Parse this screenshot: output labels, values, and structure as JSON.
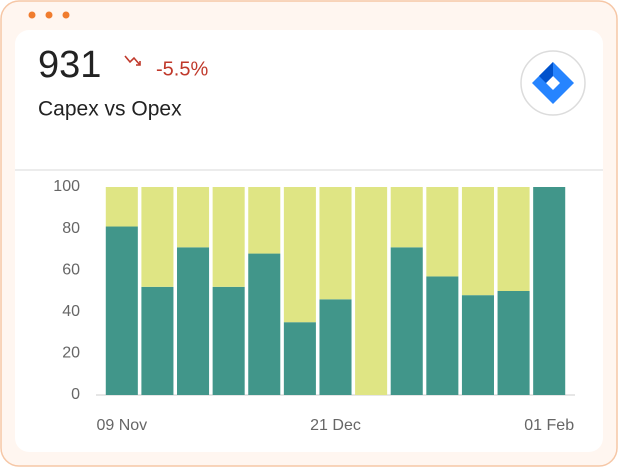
{
  "header": {
    "value": 931,
    "change": "-5.5%",
    "title": "Capex vs Opex"
  },
  "chart_data": {
    "type": "stacked_bar",
    "categories": [
      "09 Nov",
      null,
      null,
      null,
      null,
      null,
      "21 Dec",
      null,
      null,
      null,
      null,
      null,
      "01 Feb"
    ],
    "series": [
      {
        "color": "#41968a",
        "values": [
          81,
          52,
          71,
          52,
          68,
          35,
          46,
          0,
          71,
          57,
          48,
          50,
          100
        ]
      },
      {
        "color": "#dfe584",
        "values": [
          19,
          48,
          29,
          48,
          32,
          65,
          54,
          100,
          29,
          43,
          52,
          50,
          0
        ]
      }
    ],
    "ylim": [
      0,
      100
    ],
    "yticks": [
      0,
      20,
      40,
      60,
      80,
      100
    ],
    "grid": false
  }
}
